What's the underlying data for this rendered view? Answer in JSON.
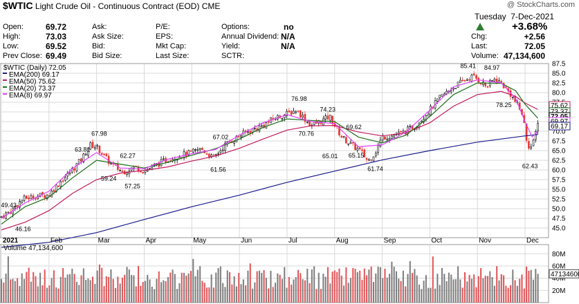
{
  "header": {
    "symbol": "$WTIC",
    "name": "Light Crude Oil - Continuous Contract (EOD)",
    "exchange": "CME",
    "watermark": "@ StockCharts.com",
    "day": "Tuesday",
    "date": "7-Dec-2021",
    "change_pct": "+3.68%",
    "quote_labels": {
      "open": "Open:",
      "high": "High:",
      "low": "Low:",
      "prev_close": "Prev Close:",
      "ask": "Ask:",
      "ask_size": "Ask Size:",
      "bid": "Bid:",
      "bid_size": "Bid Size:",
      "pe": "P/E:",
      "eps": "EPS:",
      "mkt_cap": "Mkt Cap:",
      "last_size": "Last Size:",
      "options": "Options:",
      "annual_dividend": "Annual Dividend:",
      "yield": "Yield:",
      "sctr": "SCTR:",
      "chg": "Chg:",
      "last": "Last:",
      "volume": "Volume:"
    },
    "quote_values": {
      "open": "69.72",
      "high": "73.03",
      "low": "69.52",
      "prev_close": "69.49",
      "options": "no",
      "annual_dividend": "N/A",
      "yield": "N/A",
      "chg": "+2.56",
      "last": "72.05",
      "volume": "47,134,600"
    }
  },
  "colors": {
    "ema200": "#1a1a8c",
    "ema50": "#c2185b",
    "ema20": "#1b6e1b",
    "ema8": "#e040fb",
    "up_candle": "#000000",
    "down_candle": "#e53935",
    "vol_up": "#7f7f7f",
    "vol_down": "#e0575a",
    "grid": "#d9d9d9",
    "up_arrow": "#2e7d32"
  },
  "legend": {
    "price_title": "$WTIC (Daily) 72.05",
    "ema200": "EMA(200) 69.17",
    "ema50": "EMA(50) 75.62",
    "ema20": "EMA(20) 73.37",
    "ema8": "EMA(8) 69.97",
    "volume_title": "Volume 47,134,600"
  },
  "chart_data": {
    "type": "candlestick",
    "price_axis": {
      "ylim": [
        42.5,
        87.5
      ],
      "ticks": [
        "87.5",
        "85.0",
        "82.5",
        "80.0",
        "77.5",
        "75.0",
        "72.5",
        "70.0",
        "67.5",
        "65.0",
        "62.5",
        "60.0",
        "57.5",
        "55.0",
        "52.5",
        "50.0",
        "47.5",
        "45.0"
      ]
    },
    "x_labels": [
      "2021",
      "Feb",
      "Mar",
      "Apr",
      "May",
      "Jun",
      "Jul",
      "Aug",
      "Sep",
      "Oct",
      "Nov",
      "Dec"
    ],
    "x_label_month_index": [
      0,
      1,
      2,
      3,
      4,
      5,
      6,
      7,
      8,
      9,
      10,
      11
    ],
    "price_path": [
      [
        0.0,
        48.0
      ],
      [
        0.2,
        49.4
      ],
      [
        0.45,
        52.5
      ],
      [
        0.7,
        53.2
      ],
      [
        1.0,
        53.6
      ],
      [
        1.2,
        56.5
      ],
      [
        1.45,
        59.5
      ],
      [
        1.7,
        63.0
      ],
      [
        1.85,
        66.5
      ],
      [
        2.0,
        66.0
      ],
      [
        2.3,
        61.5
      ],
      [
        2.55,
        59.5
      ],
      [
        2.8,
        60.8
      ],
      [
        3.0,
        59.8
      ],
      [
        3.2,
        61.0
      ],
      [
        3.45,
        62.5
      ],
      [
        3.7,
        63.6
      ],
      [
        4.0,
        64.5
      ],
      [
        4.2,
        65.5
      ],
      [
        4.45,
        63.0
      ],
      [
        4.7,
        66.5
      ],
      [
        5.0,
        68.8
      ],
      [
        5.25,
        70.3
      ],
      [
        5.5,
        71.5
      ],
      [
        5.75,
        73.5
      ],
      [
        6.0,
        74.5
      ],
      [
        6.2,
        75.5
      ],
      [
        6.35,
        73.5
      ],
      [
        6.5,
        71.5
      ],
      [
        6.7,
        72.5
      ],
      [
        6.9,
        73.8
      ],
      [
        7.0,
        71.5
      ],
      [
        7.15,
        68.5
      ],
      [
        7.35,
        66.5
      ],
      [
        7.55,
        64.8
      ],
      [
        7.7,
        62.3
      ],
      [
        7.85,
        64.5
      ],
      [
        8.0,
        68.5
      ],
      [
        8.2,
        68.8
      ],
      [
        8.45,
        69.7
      ],
      [
        8.7,
        71.5
      ],
      [
        9.0,
        75.5
      ],
      [
        9.2,
        78.5
      ],
      [
        9.45,
        81.0
      ],
      [
        9.7,
        83.0
      ],
      [
        9.9,
        84.2
      ],
      [
        10.0,
        83.5
      ],
      [
        10.2,
        81.5
      ],
      [
        10.35,
        83.5
      ],
      [
        10.5,
        82.5
      ],
      [
        10.7,
        79.5
      ],
      [
        10.85,
        76.5
      ],
      [
        10.95,
        74.2
      ],
      [
        11.05,
        66.5
      ],
      [
        11.15,
        65.8
      ],
      [
        11.2,
        68.5
      ],
      [
        11.27,
        72.05
      ]
    ],
    "ema200": [
      [
        0.0,
        40.0
      ],
      [
        1.0,
        41.3
      ],
      [
        2.0,
        43.8
      ],
      [
        3.0,
        47.2
      ],
      [
        4.0,
        50.5
      ],
      [
        5.0,
        53.5
      ],
      [
        6.0,
        56.8
      ],
      [
        7.0,
        59.7
      ],
      [
        8.0,
        62.6
      ],
      [
        9.0,
        65.0
      ],
      [
        10.0,
        67.2
      ],
      [
        11.0,
        68.8
      ],
      [
        11.27,
        69.17
      ]
    ],
    "ema50": [
      [
        0.0,
        44.5
      ],
      [
        0.5,
        46.5
      ],
      [
        1.0,
        49.5
      ],
      [
        1.5,
        54.0
      ],
      [
        2.0,
        57.5
      ],
      [
        2.5,
        59.2
      ],
      [
        3.0,
        59.9
      ],
      [
        3.5,
        60.8
      ],
      [
        4.0,
        62.3
      ],
      [
        4.5,
        63.6
      ],
      [
        5.0,
        65.6
      ],
      [
        5.5,
        68.0
      ],
      [
        6.0,
        70.3
      ],
      [
        6.5,
        71.4
      ],
      [
        7.0,
        71.5
      ],
      [
        7.5,
        69.8
      ],
      [
        8.0,
        68.8
      ],
      [
        8.5,
        69.6
      ],
      [
        9.0,
        72.2
      ],
      [
        9.5,
        76.5
      ],
      [
        10.0,
        79.5
      ],
      [
        10.5,
        80.3
      ],
      [
        10.8,
        79.0
      ],
      [
        11.0,
        77.3
      ],
      [
        11.27,
        75.62
      ]
    ],
    "ema20": [
      [
        0.0,
        46.0
      ],
      [
        0.5,
        50.5
      ],
      [
        1.0,
        53.0
      ],
      [
        1.5,
        58.0
      ],
      [
        2.0,
        62.5
      ],
      [
        2.5,
        61.5
      ],
      [
        3.0,
        60.5
      ],
      [
        3.5,
        62.0
      ],
      [
        4.0,
        63.8
      ],
      [
        4.5,
        65.5
      ],
      [
        5.0,
        68.0
      ],
      [
        5.5,
        71.0
      ],
      [
        6.0,
        73.2
      ],
      [
        6.5,
        72.8
      ],
      [
        7.0,
        72.5
      ],
      [
        7.5,
        68.5
      ],
      [
        8.0,
        67.0
      ],
      [
        8.5,
        69.0
      ],
      [
        9.0,
        73.8
      ],
      [
        9.5,
        79.5
      ],
      [
        10.0,
        82.5
      ],
      [
        10.5,
        82.4
      ],
      [
        10.8,
        80.5
      ],
      [
        11.0,
        77.0
      ],
      [
        11.27,
        73.37
      ]
    ],
    "ema8": [
      [
        0.0,
        47.5
      ],
      [
        0.5,
        51.5
      ],
      [
        1.0,
        54.5
      ],
      [
        1.5,
        60.5
      ],
      [
        2.0,
        64.5
      ],
      [
        2.5,
        60.5
      ],
      [
        3.0,
        60.3
      ],
      [
        3.5,
        62.8
      ],
      [
        4.0,
        64.2
      ],
      [
        4.5,
        65.3
      ],
      [
        5.0,
        69.0
      ],
      [
        5.5,
        72.2
      ],
      [
        6.0,
        74.3
      ],
      [
        6.5,
        72.5
      ],
      [
        7.0,
        72.0
      ],
      [
        7.5,
        66.0
      ],
      [
        8.0,
        66.5
      ],
      [
        8.5,
        69.8
      ],
      [
        9.0,
        75.5
      ],
      [
        9.5,
        81.5
      ],
      [
        10.0,
        83.3
      ],
      [
        10.5,
        82.5
      ],
      [
        10.8,
        78.5
      ],
      [
        11.0,
        72.5
      ],
      [
        11.15,
        68.5
      ],
      [
        11.27,
        69.97
      ]
    ],
    "annotations": [
      {
        "text": "49.43",
        "x": 0.15,
        "v": 49.43,
        "pos": "above"
      },
      {
        "text": "46.16",
        "x": 0.45,
        "v": 46.16,
        "pos": "below"
      },
      {
        "text": "63.81",
        "x": 1.7,
        "v": 63.81,
        "pos": "above"
      },
      {
        "text": "67.98",
        "x": 2.05,
        "v": 67.98,
        "pos": "above"
      },
      {
        "text": "59.24",
        "x": 2.25,
        "v": 59.24,
        "pos": "below"
      },
      {
        "text": "62.27",
        "x": 2.65,
        "v": 62.27,
        "pos": "above"
      },
      {
        "text": "57.25",
        "x": 2.75,
        "v": 57.25,
        "pos": "below"
      },
      {
        "text": "67.02",
        "x": 4.6,
        "v": 67.02,
        "pos": "above"
      },
      {
        "text": "61.56",
        "x": 4.55,
        "v": 61.56,
        "pos": "below"
      },
      {
        "text": "76.98",
        "x": 6.25,
        "v": 76.98,
        "pos": "above"
      },
      {
        "text": "70.76",
        "x": 6.4,
        "v": 70.76,
        "pos": "below"
      },
      {
        "text": "74.23",
        "x": 6.85,
        "v": 74.23,
        "pos": "above"
      },
      {
        "text": "65.01",
        "x": 6.9,
        "v": 65.01,
        "pos": "below"
      },
      {
        "text": "69.62",
        "x": 7.4,
        "v": 69.62,
        "pos": "above"
      },
      {
        "text": "65.15",
        "x": 7.45,
        "v": 65.15,
        "pos": "below"
      },
      {
        "text": "61.74",
        "x": 7.85,
        "v": 61.74,
        "pos": "below"
      },
      {
        "text": "85.41",
        "x": 9.8,
        "v": 85.41,
        "pos": "above"
      },
      {
        "text": "84.97",
        "x": 10.3,
        "v": 84.97,
        "pos": "above"
      },
      {
        "text": "78.25",
        "x": 10.55,
        "v": 78.25,
        "pos": "below"
      },
      {
        "text": "62.43",
        "x": 11.1,
        "v": 62.43,
        "pos": "below"
      }
    ],
    "price_badges": [
      {
        "text": "75.62",
        "v": 75.62,
        "key": "ema50"
      },
      {
        "text": "73.37",
        "v": 73.37,
        "key": "ema20"
      },
      {
        "text": "72.05",
        "v": 72.05,
        "key": "last"
      },
      {
        "text": "69.97",
        "v": 69.97,
        "key": "ema8"
      },
      {
        "text": "69.17",
        "v": 69.17,
        "key": "ema200"
      }
    ],
    "volume_axis": {
      "ylim": [
        0,
        95000000
      ],
      "ticks": [
        "80M",
        "60M",
        "40M",
        "20M"
      ]
    },
    "volume_badge": "47134600"
  }
}
